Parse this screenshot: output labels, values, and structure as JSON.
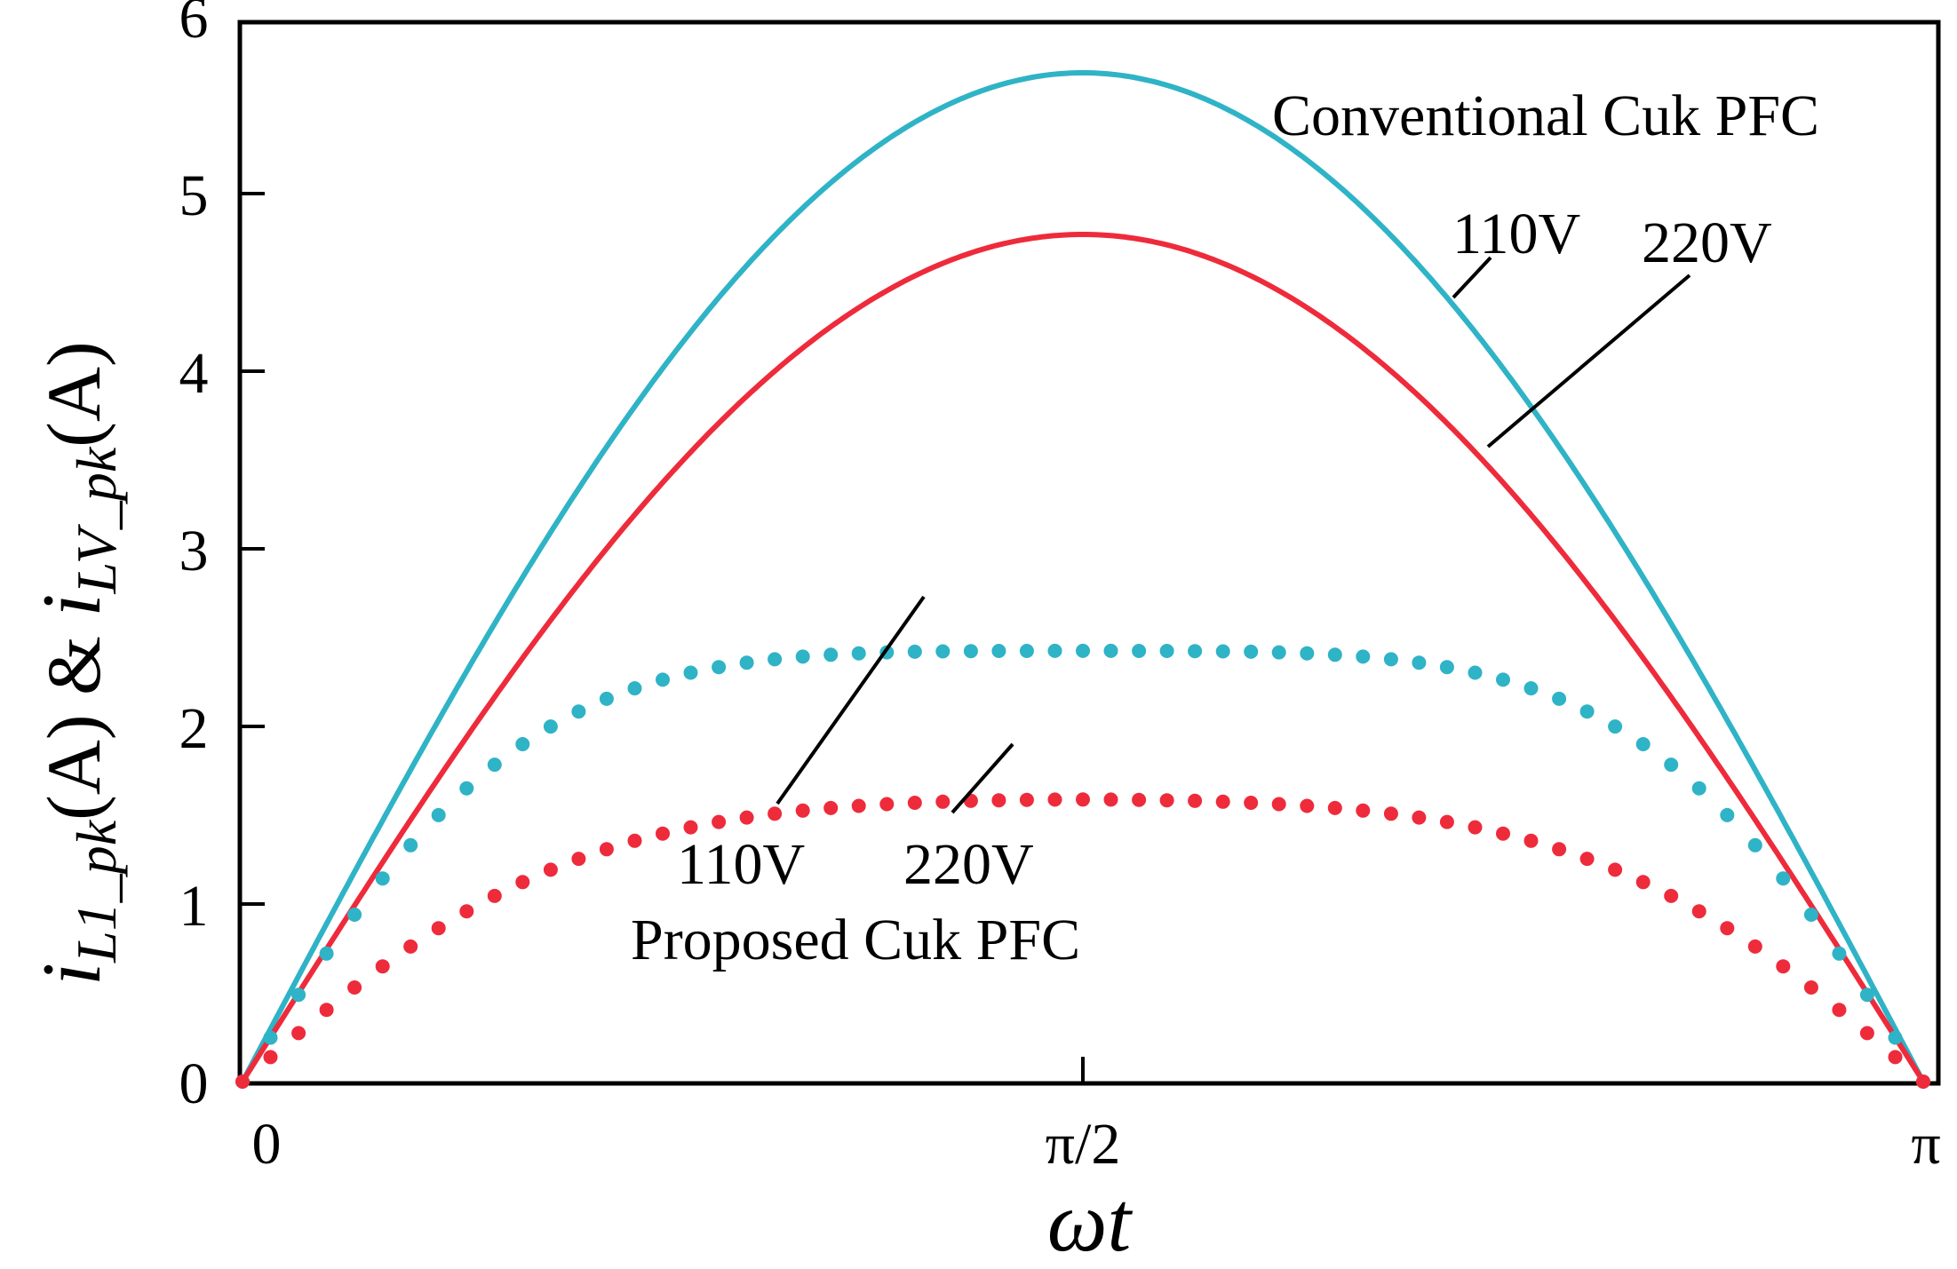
{
  "chart_data": {
    "type": "line",
    "title": "",
    "xlabel": "ωt",
    "ylabel_parts": {
      "i1": "i",
      "sub1": "L1_pk",
      "mid": "(A) & ",
      "i2": "i",
      "sub2": "LV_pk",
      "end": "(A)"
    },
    "xlim": [
      0,
      3.14159265
    ],
    "ylim": [
      0,
      6
    ],
    "x_ticks": [
      {
        "value": 0,
        "label": "0"
      },
      {
        "value": 1.5707963,
        "label": "π/2"
      },
      {
        "value": 3.14159265,
        "label": "π"
      }
    ],
    "y_ticks": [
      {
        "value": 0,
        "label": "0"
      },
      {
        "value": 1,
        "label": "1"
      },
      {
        "value": 2,
        "label": "2"
      },
      {
        "value": 3,
        "label": "3"
      },
      {
        "value": 4,
        "label": "4"
      },
      {
        "value": 5,
        "label": "5"
      },
      {
        "value": 6,
        "label": "6"
      }
    ],
    "series": [
      {
        "name": "Conventional Cuk PFC 110V",
        "style": "solid",
        "color": "#2fb3c6",
        "amplitude": 5.68,
        "model": "sine"
      },
      {
        "name": "Conventional Cuk PFC 220V",
        "style": "solid",
        "color": "#ee2b3b",
        "amplitude": 4.77,
        "model": "sine"
      },
      {
        "name": "Proposed Cuk PFC 110V",
        "style": "dotted",
        "color": "#2fb3c6",
        "model": "tanh",
        "a": 3.07,
        "b": 0.38,
        "k": 1.55
      },
      {
        "name": "Proposed Cuk PFC 220V",
        "style": "dotted",
        "color": "#ee2b3b",
        "model": "tanh",
        "a": 2.12,
        "b": 0.21,
        "k": 1.25
      }
    ],
    "point_count": 60,
    "annotations": {
      "conventional_label": "Conventional Cuk PFC",
      "conv_110": "110V",
      "conv_220": "220V",
      "proposed_110": "110V",
      "proposed_220": "220V",
      "proposed_label": "Proposed Cuk PFC"
    },
    "grid": false
  }
}
